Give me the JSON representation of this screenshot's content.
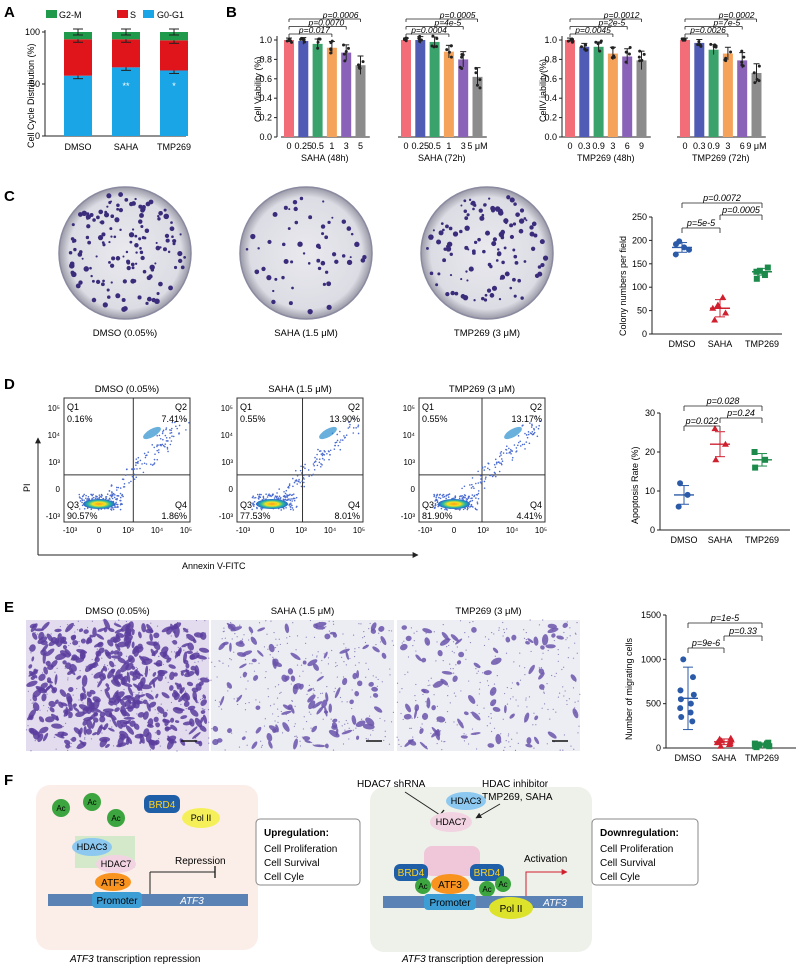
{
  "panels": {
    "A": {
      "letter": "A",
      "legend": [
        "G2-M",
        "S",
        "G0-G1"
      ],
      "ylabel": "Cell Cycle Distribution (%)",
      "yticks": [
        "0",
        "50",
        "100"
      ],
      "categories": [
        "DMSO",
        "SAHA",
        "TMP269"
      ],
      "stars": [
        "**",
        "**",
        "*"
      ]
    },
    "B": {
      "letter": "B",
      "ylabel1": "Cell Viability (%)",
      "ylabel2": "CellV iability(%)",
      "yticks": [
        "0.0",
        "0.2",
        "0.4",
        "0.6",
        "0.8",
        "1.0"
      ],
      "saha48_ticks": [
        "0",
        "0.25",
        "0.5",
        "1",
        "3",
        "5"
      ],
      "saha72_ticks": [
        "0",
        "0.25",
        "0.5",
        "1",
        "3",
        "5 μM"
      ],
      "tmp48_ticks": [
        "0",
        "0.3",
        "0.9",
        "3",
        "6",
        "9"
      ],
      "tmp72_ticks": [
        "0",
        "0.3",
        "0.9",
        "3",
        "6",
        "9 μM"
      ],
      "group_labels": [
        "SAHA (48h)",
        "SAHA (72h)",
        "TMP269 (48h)",
        "TMP269 (72h)"
      ],
      "pvals": {
        "saha48": [
          "p=0.0006",
          "p=0.0070",
          "p=0.017"
        ],
        "saha72": [
          "p=0.0005",
          "p=4e-5",
          "p=0.0004"
        ],
        "tmp48": [
          "p=0.0012",
          "p=2e-5",
          "p=0.0045"
        ],
        "tmp72": [
          "p=0.0002",
          "p=7e-5",
          "p=0.0026"
        ]
      }
    },
    "C": {
      "letter": "C",
      "plate_labels": [
        "DMSO (0.05%)",
        "SAHA (1.5 μM)",
        "TMP269 (3 μM)"
      ],
      "ylabel": "Colony numbers per field",
      "yticks": [
        "0",
        "50",
        "100",
        "150",
        "200",
        "250"
      ],
      "categories": [
        "DMSO",
        "SAHA",
        "TMP269"
      ],
      "pvals": [
        "p=5e-5",
        "p=0.0005",
        "p=0.0072"
      ]
    },
    "D": {
      "letter": "D",
      "plot_titles": [
        "DMSO (0.05%)",
        "SAHA (1.5 μM)",
        "TMP269 (3 μM)"
      ],
      "quadrants": [
        {
          "q1": "0.16%",
          "q2": "7.41%",
          "q3": "90.57%",
          "q4": "1.86%"
        },
        {
          "q1": "0.55%",
          "q2": "13.90%",
          "q3": "77.53%",
          "q4": "8.01%"
        },
        {
          "q1": "0.55%",
          "q2": "13.17%",
          "q3": "81.90%",
          "q4": "4.41%"
        }
      ],
      "quadrant_names": [
        "Q1",
        "Q2",
        "Q3",
        "Q4"
      ],
      "y_axis": "PI",
      "x_axis": "Annexin V-FITC",
      "ylabel": "Apoptosis Rate (%)",
      "yticks": [
        "0",
        "10",
        "20",
        "30"
      ],
      "categories": [
        "DMSO",
        "SAHA",
        "TMP269"
      ],
      "pvals": [
        "p=0.022",
        "p=0.24",
        "p=0.028"
      ]
    },
    "E": {
      "letter": "E",
      "image_labels": [
        "DMSO (0.05%)",
        "SAHA (1.5 μM)",
        "TMP269 (3 μM)"
      ],
      "ylabel": "Number of migrating cells",
      "yticks": [
        "0",
        "500",
        "1000",
        "1500"
      ],
      "categories": [
        "DMSO",
        "SAHA",
        "TMP269"
      ],
      "pvals": [
        "p=9e-6",
        "p=0.33",
        "p=1e-5"
      ]
    },
    "F": {
      "letter": "F",
      "left": {
        "ac": "Ac",
        "brd4": "BRD4",
        "pol": "Pol II",
        "hdac3": "HDAC3",
        "hdac7": "HDAC7",
        "atf3": "ATF3",
        "promoter": "Promoter",
        "gene": "ATF3",
        "repression": "Repression",
        "box_title": "Upregulation:",
        "box_items": [
          "Cell Proliferation",
          "Cell Survival",
          "Cell Cyle"
        ],
        "caption_gene": "ATF3",
        "caption_rest": " transcription repression"
      },
      "right": {
        "shrna": "HDAC7 shRNA",
        "inhibitor_1": "HDAC inhibitor",
        "inhibitor_2": "TMP269, SAHA",
        "hdac3": "HDAC3",
        "hdac7": "HDAC7",
        "brd4": "BRD4",
        "ac": "Ac",
        "atf3": "ATF3",
        "promoter": "Promoter",
        "pol": "Pol II",
        "gene": "ATF3",
        "activation": "Activation",
        "box_title": "Downregulation:",
        "box_items": [
          "Cell Proliferation",
          "Cell Survival",
          "Cell Cyle"
        ],
        "caption_gene": "ATF3",
        "caption_rest": " transcription derepression"
      }
    }
  },
  "chart_data": [
    {
      "type": "bar",
      "stacked": true,
      "ylabel": "Cell Cycle Distribution (%)",
      "categories": [
        "DMSO",
        "SAHA",
        "TMP269"
      ],
      "ylim": [
        0,
        100
      ],
      "series": [
        {
          "name": "G0-G1",
          "values": [
            58,
            66,
            63
          ],
          "color": "#1aa6e6"
        },
        {
          "name": "S",
          "values": [
            35,
            27,
            29
          ],
          "color": "#e0141b"
        },
        {
          "name": "G2-M",
          "values": [
            7,
            7,
            8
          ],
          "color": "#1f9a4a"
        }
      ]
    },
    {
      "type": "bar",
      "ylabel": "Cell Viability (%)",
      "ylim": [
        0,
        1.1
      ],
      "groups": [
        {
          "name": "SAHA (48h)",
          "categories": [
            "0",
            "0.25",
            "0.5",
            "1",
            "3",
            "5"
          ],
          "values": [
            1.0,
            0.99,
            0.96,
            0.92,
            0.87,
            0.74
          ]
        },
        {
          "name": "SAHA (72h)",
          "categories": [
            "0",
            "0.25",
            "0.5",
            "1",
            "3",
            "5"
          ],
          "values": [
            1.0,
            1.0,
            0.98,
            0.88,
            0.8,
            0.62
          ]
        },
        {
          "name": "TMP269 (48h)",
          "categories": [
            "0",
            "0.3",
            "0.9",
            "3",
            "6",
            "9"
          ],
          "values": [
            1.0,
            0.93,
            0.93,
            0.86,
            0.83,
            0.79
          ]
        },
        {
          "name": "TMP269 (72h)",
          "categories": [
            "0",
            "0.3",
            "0.9",
            "3",
            "6",
            "9"
          ],
          "values": [
            1.0,
            0.97,
            0.9,
            0.86,
            0.79,
            0.66
          ]
        }
      ],
      "colors": [
        "#f26d78",
        "#4f5bb5",
        "#3aa36b",
        "#f5a35a",
        "#8a63b8",
        "#8c8c8c"
      ]
    },
    {
      "type": "scatter",
      "ylabel": "Colony numbers per field",
      "categories": [
        "DMSO",
        "SAHA",
        "TMP269"
      ],
      "ylim": [
        0,
        250
      ],
      "means": [
        185,
        55,
        133
      ],
      "points": [
        [
          170,
          180,
          192,
          185,
          198
        ],
        [
          30,
          45,
          62,
          78,
          55
        ],
        [
          118,
          126,
          133,
          142,
          135
        ]
      ],
      "colors": [
        "#2b5aa8",
        "#d0202f",
        "#1c8a4a"
      ]
    },
    {
      "type": "scatter",
      "ylabel": "Apoptosis Rate (%)",
      "categories": [
        "DMSO",
        "SAHA",
        "TMP269"
      ],
      "ylim": [
        0,
        30
      ],
      "means": [
        9,
        22,
        18
      ],
      "points": [
        [
          6,
          9,
          12
        ],
        [
          18,
          22,
          26
        ],
        [
          16,
          18,
          20
        ]
      ],
      "colors": [
        "#2b5aa8",
        "#d0202f",
        "#1c8a4a"
      ]
    },
    {
      "type": "scatter",
      "ylabel": "Number of migrating cells",
      "categories": [
        "DMSO",
        "SAHA",
        "TMP269"
      ],
      "ylim": [
        0,
        1500
      ],
      "means": [
        560,
        70,
        40
      ],
      "points": [
        [
          1000,
          800,
          650,
          600,
          550,
          500,
          450,
          400,
          350,
          300
        ],
        [
          20,
          40,
          60,
          70,
          80,
          90,
          100,
          110,
          60,
          50
        ],
        [
          10,
          20,
          30,
          40,
          50,
          60,
          40,
          30,
          20,
          50
        ]
      ],
      "colors": [
        "#2b5aa8",
        "#d0202f",
        "#1c8a4a"
      ]
    }
  ]
}
